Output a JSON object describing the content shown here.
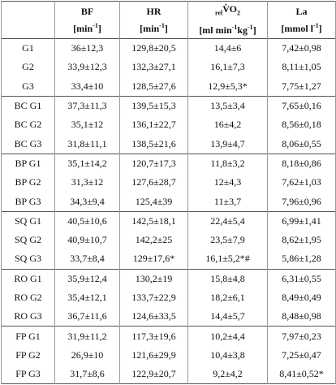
{
  "table": {
    "header": [
      {
        "name": [
          {
            "t": "BF"
          }
        ],
        "unit": [
          {
            "t": "[min"
          },
          {
            "t": "-1",
            "s": "sup"
          },
          {
            "t": "]"
          }
        ]
      },
      {
        "name": [
          {
            "t": "HR"
          }
        ],
        "unit": [
          {
            "t": "[min"
          },
          {
            "t": "-1",
            "s": "sup"
          },
          {
            "t": "]"
          }
        ]
      },
      {
        "name": [
          {
            "t": "rel",
            "s": "sub"
          },
          {
            "t": "V̇O"
          },
          {
            "t": "2",
            "s": "sub"
          }
        ],
        "unit": [
          {
            "t": "[ml min"
          },
          {
            "t": "-1",
            "s": "sup"
          },
          {
            "t": "kg"
          },
          {
            "t": "-1",
            "s": "sup"
          },
          {
            "t": "]"
          }
        ]
      },
      {
        "name": [
          {
            "t": "La"
          }
        ],
        "unit": [
          {
            "t": "[mmol l"
          },
          {
            "t": "-1",
            "s": "sup"
          },
          {
            "t": "]"
          }
        ]
      }
    ],
    "groups": [
      {
        "rows": [
          [
            "G1",
            "36±12,3",
            "129,8±20,5",
            "14,4±6",
            "7,42±0,98"
          ],
          [
            "G2",
            "33,9±12,3",
            "132,3±27,1",
            "16,1±7,3",
            "8,11±1,05"
          ],
          [
            "G3",
            "33,4±10",
            "128,5±27,6",
            "12,9±5,3*",
            "7,75±1,27"
          ]
        ]
      },
      {
        "rows": [
          [
            "BC G1",
            "37,3±11,3",
            "139,5±15,3",
            "13,5±3,4",
            "7,65±0,16"
          ],
          [
            "BC G2",
            "35,1±12",
            "136,1±22,7",
            "16±4,2",
            "8,56±0,18"
          ],
          [
            "BC G3",
            "31,8±11,1",
            "138,5±21,6",
            "13,9±4,7",
            "8,06±0,55"
          ]
        ]
      },
      {
        "rows": [
          [
            "BP G1",
            "35,1±14,2",
            "120,7±17,3",
            "11,8±3,2",
            "8,18±0,86"
          ],
          [
            "BP G2",
            "31,3±12",
            "127,6±28,7",
            "12±4,3",
            "7,62±1,03"
          ],
          [
            "BP G3",
            "34,3±9,4",
            "125,4±39",
            "11±3,7",
            "7,96±0,96"
          ]
        ]
      },
      {
        "rows": [
          [
            "SQ G1",
            "40,5±10,6",
            "142,5±18,1",
            "22,4±5,4",
            "6,99±1,41"
          ],
          [
            "SQ G2",
            "40,9±10,7",
            "142,2±25",
            "23,5±7,9",
            "8,62±1,95"
          ],
          [
            "SQ G3",
            "33,7±8,4",
            "129±17,6*",
            "16,1±5,2*#",
            "5,86±1,28"
          ]
        ]
      },
      {
        "rows": [
          [
            "RO G1",
            "35,9±12,4",
            "130,2±19",
            "15,8±4,8",
            "6,31±0,55"
          ],
          [
            "RO G2",
            "35,4±12,1",
            "133,7±22,9",
            "18,2±6,1",
            "8,49±0,49"
          ],
          [
            "RO G3",
            "36,7±11,6",
            "124,6±33,5",
            "14,4±5,7",
            "8,48±0,98"
          ]
        ]
      },
      {
        "rows": [
          [
            "FP G1",
            "31,9±11,2",
            "117,3±19,6",
            "10,2±4,4",
            "7,97±0,23"
          ],
          [
            "FP G2",
            "26,9±10",
            "121,6±29,9",
            "10,4±3,8",
            "7,25±0,47"
          ],
          [
            "FP G3",
            "31,7±8,6",
            "122,9±20,7",
            "9,2±4,2",
            "8,41±0,52*"
          ]
        ]
      }
    ]
  }
}
